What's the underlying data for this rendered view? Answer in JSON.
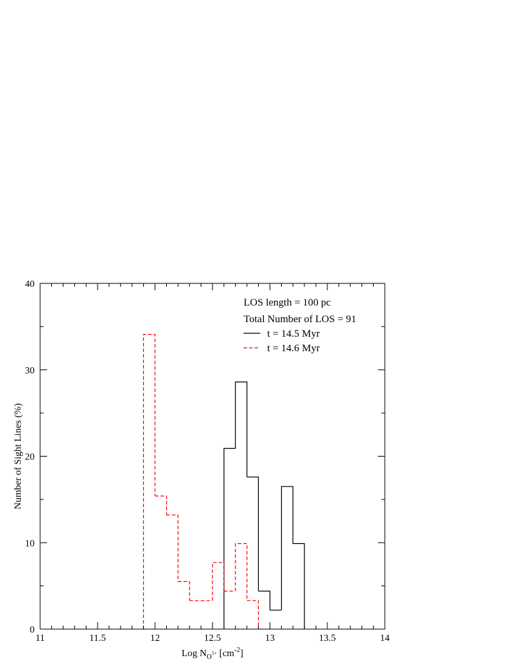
{
  "chart_data": {
    "type": "histogram",
    "xlabel_main": "Log N",
    "xlabel_sub": "O",
    "xlabel_sup_sub": "5+",
    "xlabel_unit_open": " [cm",
    "xlabel_unit_sup": "-2",
    "xlabel_unit_close": "]",
    "ylabel": "Number of Sight Lines (%)",
    "xlim": [
      11,
      14
    ],
    "ylim": [
      0,
      40
    ],
    "xticks": [
      11,
      11.5,
      12,
      12.5,
      13,
      13.5,
      14
    ],
    "xtick_labels": [
      "11",
      "11.5",
      "12",
      "12.5",
      "13",
      "13.5",
      "14"
    ],
    "yticks": [
      0,
      10,
      20,
      30,
      40
    ],
    "ytick_labels": [
      "0",
      "10",
      "20",
      "30",
      "40"
    ],
    "annotations": [
      "LOS length = 100 pc",
      "Total Number of LOS = 91"
    ],
    "legend_position": "top-right",
    "series": [
      {
        "name": "t = 14.5 Myr",
        "color": "#000000",
        "style": "solid",
        "bin_edges": [
          12.6,
          12.7,
          12.8,
          12.9,
          13.0,
          13.1,
          13.2,
          13.3
        ],
        "values": [
          20.9,
          28.6,
          17.6,
          4.4,
          2.2,
          16.5,
          9.9
        ]
      },
      {
        "name": "t = 14.6 Myr",
        "color": "#ff0000",
        "style": "dashed",
        "bin_edges": [
          11.9,
          12.0,
          12.1,
          12.2,
          12.3,
          12.4,
          12.5,
          12.6,
          12.7,
          12.8,
          12.9
        ],
        "values": [
          34.1,
          15.4,
          13.2,
          5.5,
          3.3,
          3.3,
          7.7,
          4.4,
          9.9,
          3.3
        ]
      }
    ]
  }
}
